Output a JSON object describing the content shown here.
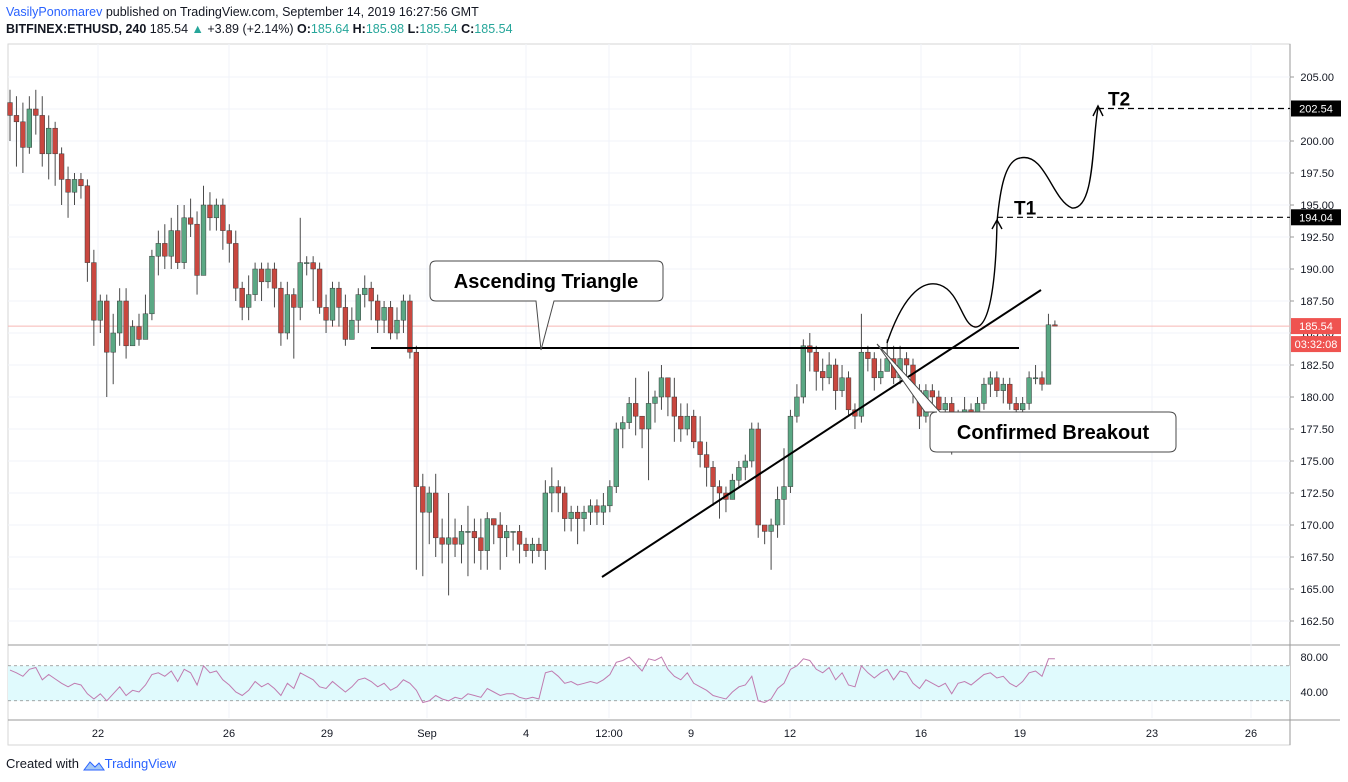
{
  "header": {
    "author": "VasilyPonomarev",
    "published_text": " published on TradingView.com, September 14, 2019 16:27:56 GMT",
    "symbol": "BITFINEX:ETHUSD, 240",
    "last": "185.54",
    "change_arrow": "▲",
    "change": "+3.89 (+2.14%)",
    "o_label": "O:",
    "o": "185.64",
    "h_label": "H:",
    "h": "185.98",
    "l_label": "L:",
    "l": "185.54",
    "c_label": "C:",
    "c": "185.54"
  },
  "footer": {
    "created_with": "Created with",
    "brand": "TradingView"
  },
  "colors": {
    "up": "#26a69a",
    "down": "#ef5350",
    "up_body": "#5aa884",
    "down_body": "#c9473f",
    "rsi_band": "#e0fafd",
    "rsi_line": "#c07bb0",
    "price_label": "#ef5350"
  },
  "chart_data": [
    {
      "type": "candlestick",
      "title": "",
      "x_tick_labels": [
        "22",
        "26",
        "29",
        "Sep",
        "4",
        "12:00",
        "9",
        "12",
        "16",
        "19",
        "23",
        "26"
      ],
      "y_tick_labels": [
        "205.00",
        "202.50",
        "200.00",
        "197.50",
        "195.00",
        "192.50",
        "190.00",
        "187.50",
        "185.00",
        "182.50",
        "180.00",
        "177.50",
        "175.00",
        "172.50",
        "170.00",
        "167.50",
        "165.00",
        "162.50"
      ],
      "ylim": [
        160.5,
        207.0
      ],
      "price_labels": [
        {
          "text": "202.54",
          "value": 202.54,
          "style": "dark"
        },
        {
          "text": "194.04",
          "value": 194.04,
          "style": "dark"
        },
        {
          "text": "185.54",
          "value": 185.54,
          "style": "red"
        },
        {
          "text": "03:32:08",
          "value": 183.9,
          "style": "red"
        }
      ],
      "candles": [
        [
          203.0,
          202.0,
          204.0,
          200.0
        ],
        [
          202.0,
          201.5,
          203.5,
          198.0
        ],
        [
          201.5,
          199.5,
          203.0,
          197.5
        ],
        [
          199.5,
          202.5,
          203.5,
          199.0
        ],
        [
          202.5,
          202.0,
          204.0,
          200.5
        ],
        [
          202.0,
          199.0,
          203.5,
          198.0
        ],
        [
          199.0,
          201.0,
          202.0,
          197.0
        ],
        [
          201.0,
          199.0,
          201.5,
          196.5
        ],
        [
          199.0,
          197.0,
          199.5,
          195.0
        ],
        [
          197.0,
          196.0,
          198.0,
          194.0
        ],
        [
          196.0,
          197.0,
          197.5,
          195.0
        ],
        [
          197.0,
          196.5,
          197.5,
          195.5
        ],
        [
          196.5,
          190.5,
          197.0,
          189.0
        ],
        [
          190.5,
          186.0,
          191.5,
          184.0
        ],
        [
          186.0,
          187.5,
          188.0,
          185.0
        ],
        [
          187.5,
          183.5,
          188.0,
          180.0
        ],
        [
          183.5,
          185.0,
          186.5,
          181.0
        ],
        [
          185.0,
          187.5,
          188.5,
          184.0
        ],
        [
          187.5,
          184.0,
          188.5,
          183.0
        ],
        [
          184.0,
          185.5,
          186.0,
          184.0
        ],
        [
          185.5,
          184.5,
          186.5,
          184.0
        ],
        [
          184.5,
          186.5,
          188.0,
          185.5
        ],
        [
          186.5,
          191.0,
          191.5,
          186.0
        ],
        [
          191.0,
          192.0,
          193.0,
          189.5
        ],
        [
          192.0,
          191.0,
          193.5,
          190.0
        ],
        [
          191.0,
          193.0,
          194.0,
          190.0
        ],
        [
          193.0,
          190.5,
          195.0,
          190.0
        ],
        [
          190.5,
          194.0,
          195.0,
          190.0
        ],
        [
          194.0,
          193.5,
          195.5,
          192.5
        ],
        [
          193.5,
          189.5,
          194.5,
          188.0
        ],
        [
          189.5,
          195.0,
          196.5,
          189.5
        ],
        [
          195.0,
          194.0,
          196.0,
          193.0
        ],
        [
          194.0,
          195.0,
          195.5,
          193.0
        ],
        [
          195.0,
          193.0,
          195.5,
          191.5
        ],
        [
          193.0,
          192.0,
          193.5,
          190.5
        ],
        [
          192.0,
          188.5,
          193.0,
          187.5
        ],
        [
          188.5,
          187.0,
          189.0,
          186.0
        ],
        [
          187.0,
          188.0,
          189.5,
          186.0
        ],
        [
          188.0,
          190.0,
          190.5,
          187.5
        ],
        [
          190.0,
          189.0,
          190.5,
          187.5
        ],
        [
          189.0,
          190.0,
          190.5,
          188.5
        ],
        [
          190.0,
          188.5,
          190.5,
          187.0
        ],
        [
          188.5,
          185.0,
          189.0,
          184.0
        ],
        [
          185.0,
          188.0,
          189.0,
          184.5
        ],
        [
          188.0,
          187.0,
          188.5,
          183.0
        ],
        [
          187.0,
          190.5,
          194.0,
          186.0
        ],
        [
          190.5,
          190.5,
          191.0,
          189.5
        ],
        [
          190.5,
          190.0,
          191.0,
          187.5
        ],
        [
          190.0,
          187.0,
          190.5,
          186.5
        ],
        [
          187.0,
          186.0,
          188.0,
          185.0
        ],
        [
          186.0,
          188.5,
          189.0,
          185.5
        ],
        [
          188.5,
          187.0,
          189.0,
          185.5
        ],
        [
          187.0,
          184.5,
          188.0,
          184.0
        ],
        [
          184.5,
          186.0,
          187.0,
          184.5
        ],
        [
          186.0,
          188.0,
          188.5,
          185.0
        ],
        [
          188.0,
          188.5,
          189.5,
          187.0
        ],
        [
          188.5,
          187.5,
          189.0,
          186.0
        ],
        [
          187.5,
          186.0,
          188.0,
          185.0
        ],
        [
          186.0,
          187.0,
          187.5,
          185.0
        ],
        [
          187.0,
          185.0,
          187.5,
          184.5
        ],
        [
          185.0,
          186.0,
          187.0,
          184.5
        ],
        [
          186.0,
          187.5,
          188.0,
          185.0
        ],
        [
          187.5,
          183.5,
          188.0,
          183.0
        ],
        [
          183.5,
          173.0,
          184.0,
          166.5
        ],
        [
          173.0,
          171.0,
          174.0,
          166.0
        ],
        [
          171.0,
          172.5,
          173.0,
          168.5
        ],
        [
          172.5,
          169.0,
          174.0,
          167.5
        ],
        [
          169.0,
          168.5,
          170.5,
          167.0
        ],
        [
          168.5,
          169.0,
          172.5,
          164.5
        ],
        [
          169.0,
          168.5,
          170.5,
          167.5
        ],
        [
          168.5,
          169.5,
          170.0,
          167.0
        ],
        [
          169.5,
          169.5,
          171.5,
          166.0
        ],
        [
          169.5,
          169.0,
          170.5,
          167.0
        ],
        [
          169.0,
          168.0,
          170.5,
          166.5
        ],
        [
          168.0,
          170.5,
          171.0,
          166.5
        ],
        [
          170.5,
          170.0,
          170.5,
          168.5
        ],
        [
          170.0,
          169.0,
          171.0,
          166.5
        ],
        [
          169.0,
          169.5,
          170.0,
          167.5
        ],
        [
          169.5,
          169.5,
          169.5,
          168.0
        ],
        [
          169.5,
          168.5,
          170.0,
          167.0
        ],
        [
          168.5,
          168.0,
          169.0,
          167.5
        ],
        [
          168.0,
          168.5,
          169.0,
          167.0
        ],
        [
          168.5,
          168.0,
          169.0,
          167.5
        ],
        [
          168.0,
          172.5,
          173.5,
          166.5
        ],
        [
          172.5,
          173.0,
          174.5,
          171.0
        ],
        [
          173.0,
          172.5,
          173.5,
          171.0
        ],
        [
          172.5,
          170.5,
          173.0,
          169.5
        ],
        [
          170.5,
          171.0,
          171.5,
          169.5
        ],
        [
          171.0,
          170.5,
          171.5,
          168.5
        ],
        [
          170.5,
          171.0,
          171.5,
          169.5
        ],
        [
          171.0,
          171.5,
          172.0,
          170.0
        ],
        [
          171.5,
          171.0,
          172.0,
          170.0
        ],
        [
          171.0,
          171.5,
          172.5,
          170.0
        ],
        [
          171.5,
          173.0,
          173.5,
          171.0
        ],
        [
          173.0,
          177.5,
          178.0,
          172.5
        ],
        [
          177.5,
          178.0,
          178.5,
          176.0
        ],
        [
          178.0,
          179.5,
          180.0,
          177.5
        ],
        [
          179.5,
          178.5,
          181.5,
          177.0
        ],
        [
          178.5,
          177.5,
          178.0,
          176.0
        ],
        [
          177.5,
          179.5,
          182.0,
          173.5
        ],
        [
          179.5,
          180.0,
          180.5,
          178.0
        ],
        [
          180.0,
          181.5,
          182.5,
          179.0
        ],
        [
          181.5,
          180.0,
          181.5,
          178.5
        ],
        [
          180.0,
          178.5,
          181.5,
          176.5
        ],
        [
          178.5,
          177.5,
          179.5,
          176.5
        ],
        [
          177.5,
          178.5,
          179.5,
          177.0
        ],
        [
          178.5,
          176.5,
          179.0,
          176.0
        ],
        [
          176.5,
          175.5,
          178.5,
          174.5
        ],
        [
          175.5,
          174.5,
          176.5,
          173.0
        ],
        [
          174.5,
          173.0,
          175.0,
          171.5
        ],
        [
          173.0,
          172.5,
          173.5,
          170.5
        ],
        [
          172.5,
          172.0,
          173.0,
          171.0
        ],
        [
          172.0,
          173.5,
          174.0,
          172.0
        ],
        [
          173.5,
          174.5,
          175.0,
          173.0
        ],
        [
          174.5,
          175.0,
          175.5,
          173.5
        ],
        [
          175.0,
          177.5,
          178.0,
          174.5
        ],
        [
          177.5,
          170.0,
          178.0,
          169.0
        ],
        [
          170.0,
          169.5,
          170.0,
          168.5
        ],
        [
          169.5,
          170.0,
          170.5,
          166.5
        ],
        [
          170.0,
          172.0,
          173.0,
          169.0
        ],
        [
          172.0,
          173.0,
          176.0,
          170.0
        ],
        [
          173.0,
          178.5,
          179.0,
          172.5
        ],
        [
          178.5,
          180.0,
          181.0,
          178.0
        ],
        [
          180.0,
          184.0,
          184.5,
          179.5
        ],
        [
          184.0,
          183.5,
          185.0,
          182.0
        ],
        [
          183.5,
          182.0,
          184.0,
          180.5
        ],
        [
          182.0,
          181.5,
          183.0,
          180.5
        ],
        [
          181.5,
          182.5,
          183.5,
          181.0
        ],
        [
          182.5,
          180.5,
          183.0,
          179.0
        ],
        [
          180.5,
          181.5,
          182.5,
          180.0
        ],
        [
          181.5,
          179.0,
          182.0,
          178.5
        ],
        [
          179.0,
          178.5,
          179.5,
          177.5
        ],
        [
          178.5,
          183.5,
          186.5,
          178.0
        ],
        [
          183.5,
          183.0,
          184.0,
          182.0
        ],
        [
          183.0,
          181.5,
          183.5,
          180.5
        ],
        [
          181.5,
          182.0,
          183.0,
          181.0
        ],
        [
          182.0,
          183.0,
          184.5,
          182.0
        ],
        [
          183.0,
          181.5,
          184.0,
          181.0
        ],
        [
          181.5,
          183.0,
          184.0,
          181.0
        ],
        [
          183.0,
          182.5,
          183.5,
          181.5
        ],
        [
          182.5,
          180.5,
          183.0,
          179.5
        ],
        [
          180.5,
          178.5,
          181.0,
          177.5
        ],
        [
          178.5,
          180.5,
          181.0,
          178.0
        ],
        [
          180.5,
          180.0,
          181.0,
          179.0
        ],
        [
          180.0,
          179.0,
          180.5,
          178.0
        ],
        [
          179.0,
          179.5,
          180.0,
          178.5
        ],
        [
          179.5,
          176.5,
          180.0,
          175.5
        ],
        [
          176.5,
          178.5,
          179.0,
          176.0
        ],
        [
          178.5,
          179.0,
          180.0,
          178.0
        ],
        [
          179.0,
          178.5,
          179.5,
          177.5
        ],
        [
          178.5,
          179.5,
          180.0,
          178.0
        ],
        [
          179.5,
          181.0,
          181.5,
          179.0
        ],
        [
          181.0,
          181.5,
          182.0,
          180.0
        ],
        [
          181.5,
          180.5,
          182.0,
          180.0
        ],
        [
          180.5,
          181.0,
          181.5,
          179.5
        ],
        [
          181.0,
          179.5,
          181.5,
          179.0
        ],
        [
          179.5,
          179.0,
          180.0,
          178.5
        ],
        [
          179.0,
          179.5,
          180.0,
          178.5
        ],
        [
          179.5,
          181.5,
          182.0,
          179.0
        ],
        [
          181.5,
          181.5,
          182.5,
          181.0
        ],
        [
          181.5,
          181.0,
          182.0,
          180.5
        ],
        [
          181.0,
          185.64,
          186.5,
          181.0
        ],
        [
          185.64,
          185.54,
          185.98,
          185.54
        ]
      ],
      "rsi": {
        "ylim": [
          20,
          100
        ],
        "tick_labels": [
          "80.00",
          "40.00"
        ],
        "band": [
          30,
          70
        ],
        "values": [
          65,
          62,
          58,
          66,
          68,
          54,
          60,
          55,
          50,
          46,
          50,
          48,
          38,
          32,
          38,
          30,
          38,
          46,
          36,
          42,
          40,
          48,
          60,
          62,
          58,
          64,
          52,
          66,
          62,
          48,
          70,
          62,
          64,
          54,
          48,
          40,
          36,
          42,
          52,
          46,
          50,
          44,
          36,
          50,
          44,
          62,
          58,
          54,
          46,
          44,
          52,
          46,
          40,
          46,
          54,
          56,
          52,
          46,
          50,
          42,
          46,
          54,
          50,
          42,
          28,
          30,
          36,
          32,
          30,
          34,
          32,
          38,
          36,
          34,
          44,
          40,
          36,
          38,
          38,
          34,
          32,
          34,
          32,
          62,
          64,
          58,
          50,
          52,
          48,
          50,
          52,
          50,
          54,
          60,
          74,
          76,
          80,
          72,
          64,
          78,
          76,
          80,
          66,
          58,
          54,
          62,
          50,
          46,
          42,
          36,
          34,
          32,
          40,
          46,
          48,
          58,
          30,
          28,
          32,
          44,
          50,
          66,
          70,
          78,
          76,
          66,
          62,
          68,
          54,
          62,
          48,
          46,
          70,
          62,
          56,
          62,
          66,
          54,
          64,
          62,
          50,
          44,
          54,
          50,
          46,
          50,
          38,
          50,
          52,
          48,
          54,
          60,
          62,
          56,
          58,
          50,
          46,
          52,
          62,
          64,
          58,
          78,
          78
        ]
      },
      "annotations": [
        {
          "text": "Ascending Triangle",
          "kind": "callout"
        },
        {
          "text": "Confirmed Breakout",
          "kind": "callout"
        },
        {
          "text": "T1",
          "kind": "target",
          "value": 194.04
        },
        {
          "text": "T2",
          "kind": "target",
          "value": 202.54
        }
      ]
    }
  ]
}
